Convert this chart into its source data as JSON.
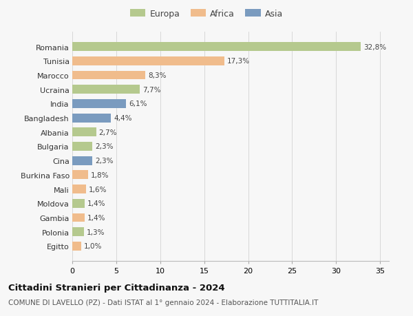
{
  "countries": [
    "Romania",
    "Tunisia",
    "Marocco",
    "Ucraina",
    "India",
    "Bangladesh",
    "Albania",
    "Bulgaria",
    "Cina",
    "Burkina Faso",
    "Mali",
    "Moldova",
    "Gambia",
    "Polonia",
    "Egitto"
  ],
  "values": [
    32.8,
    17.3,
    8.3,
    7.7,
    6.1,
    4.4,
    2.7,
    2.3,
    2.3,
    1.8,
    1.6,
    1.4,
    1.4,
    1.3,
    1.0
  ],
  "labels": [
    "32,8%",
    "17,3%",
    "8,3%",
    "7,7%",
    "6,1%",
    "4,4%",
    "2,7%",
    "2,3%",
    "2,3%",
    "1,8%",
    "1,6%",
    "1,4%",
    "1,4%",
    "1,3%",
    "1,0%"
  ],
  "continents": [
    "Europa",
    "Africa",
    "Africa",
    "Europa",
    "Asia",
    "Asia",
    "Europa",
    "Europa",
    "Asia",
    "Africa",
    "Africa",
    "Europa",
    "Africa",
    "Europa",
    "Africa"
  ],
  "colors": {
    "Europa": "#b5c98e",
    "Africa": "#f0bc8c",
    "Asia": "#7a9bbf"
  },
  "title1": "Cittadini Stranieri per Cittadinanza - 2024",
  "title2": "COMUNE DI LAVELLO (PZ) - Dati ISTAT al 1° gennaio 2024 - Elaborazione TUTTITALIA.IT",
  "xlim": [
    0,
    36
  ],
  "xticks": [
    0,
    5,
    10,
    15,
    20,
    25,
    30,
    35
  ],
  "background_color": "#f7f7f7",
  "grid_color": "#d8d8d8",
  "bar_height": 0.62,
  "label_fontsize": 7.5,
  "ytick_fontsize": 8.0,
  "xtick_fontsize": 8.0,
  "legend_fontsize": 9.0,
  "title1_fontsize": 9.5,
  "title2_fontsize": 7.5
}
